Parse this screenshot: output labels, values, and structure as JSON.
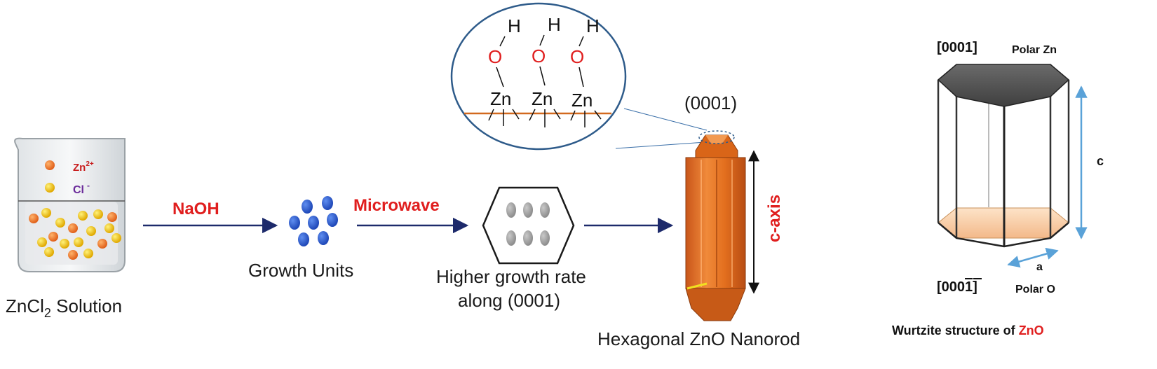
{
  "beaker": {
    "legend_zn_base": "Zn",
    "legend_zn_sup": "2+",
    "legend_cl_base": "Cl",
    "legend_cl_sup": "-",
    "caption_prefix": "ZnCl",
    "caption_sub": "2",
    "caption_suffix": " Solution"
  },
  "arrows": {
    "naoh_label": "NaOH",
    "microwave_label": "Microwave"
  },
  "growth_units": {
    "caption": "Growth Units"
  },
  "growth_hexagon": {
    "caption_line1": "Higher growth rate",
    "caption_line2": "along (0001)"
  },
  "surface_zoom": {
    "hydrogen": "H",
    "oxygen": "O",
    "zinc": "Zn"
  },
  "nanorod": {
    "facet_label": "(0001)",
    "axis_label": "c-axis",
    "caption": "Hexagonal ZnO Nanorod"
  },
  "wurtzite": {
    "top_index": "[0001]",
    "top_polar": "Polar Zn",
    "bottom_index_prefix": "[000",
    "bottom_index_bar": "1",
    "bottom_index_suffix": "]",
    "bottom_polar": "Polar O",
    "c_label": "c",
    "a_label": "a",
    "caption_prefix": "Wurtzite structure of ",
    "caption_highlight": "ZnO"
  },
  "colors": {
    "arrow": "#1d2a6b",
    "red_label": "#e01e1e",
    "zn_ion": "#f07a28",
    "cl_ion": "#f2c40c",
    "growth_unit": "#2f5fd0",
    "nanorod": "#e36f1e",
    "zoom_outline": "#2e5b8a",
    "dimension_arrow": "#5aa2d8",
    "top_face": "#5a5a5a",
    "bottom_face": "#f5c9a0"
  }
}
